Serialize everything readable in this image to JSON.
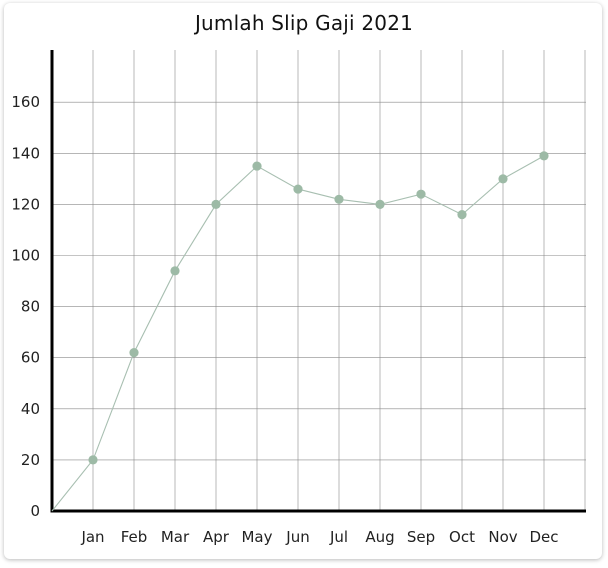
{
  "chart_data": {
    "type": "line",
    "title": "Jumlah Slip Gaji 2021",
    "xlabel": "",
    "ylabel": "",
    "categories": [
      "Jan",
      "Feb",
      "Mar",
      "Apr",
      "May",
      "Jun",
      "Jul",
      "Aug",
      "Sep",
      "Oct",
      "Nov",
      "Dec"
    ],
    "series": [
      {
        "values": [
          20,
          62,
          94,
          120,
          135,
          126,
          122,
          120,
          124,
          116,
          130,
          139
        ]
      }
    ],
    "origin_value": 0,
    "ylim": [
      0,
      160
    ],
    "yticks": [
      0,
      20,
      40,
      60,
      80,
      100,
      120,
      140,
      160
    ],
    "grid": true,
    "legend": "none",
    "colors": {
      "line": "#a8bfb1",
      "marker": "#9dbaa6",
      "grid": "#8a8a8a",
      "axis": "#000000"
    }
  }
}
